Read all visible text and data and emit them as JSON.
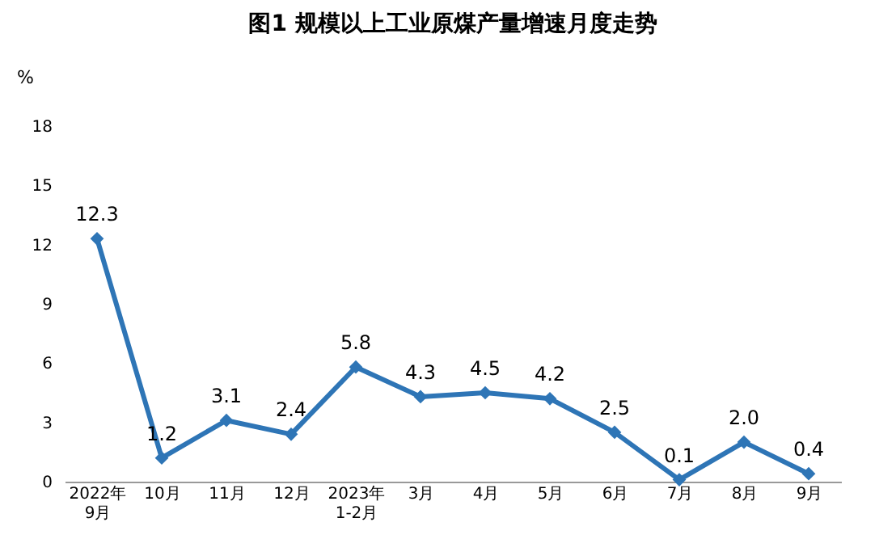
{
  "chart_data": {
    "type": "line",
    "title": "图1  规模以上工业原煤产量增速月度走势",
    "ylabel": "%",
    "categories": [
      "2022年\n9月",
      "10月",
      "11月",
      "12月",
      "2023年\n1-2月",
      "3月",
      "4月",
      "5月",
      "6月",
      "7月",
      "8月",
      "9月"
    ],
    "series": [
      {
        "color": "#2e75b6",
        "values": [
          12.3,
          1.2,
          3.1,
          2.4,
          5.8,
          4.3,
          4.5,
          4.2,
          2.5,
          0.1,
          2.0,
          0.4
        ],
        "value_labels": [
          "12.3",
          "1.2",
          "3.1",
          "2.4",
          "5.8",
          "4.3",
          "4.5",
          "4.2",
          "2.5",
          "0.1",
          "2.0",
          "0.4"
        ]
      }
    ],
    "ylim": [
      0,
      18
    ],
    "yticks": [
      0,
      3,
      6,
      9,
      12,
      15,
      18
    ],
    "grid": false,
    "marker": "diamond",
    "line_style": "solid"
  }
}
